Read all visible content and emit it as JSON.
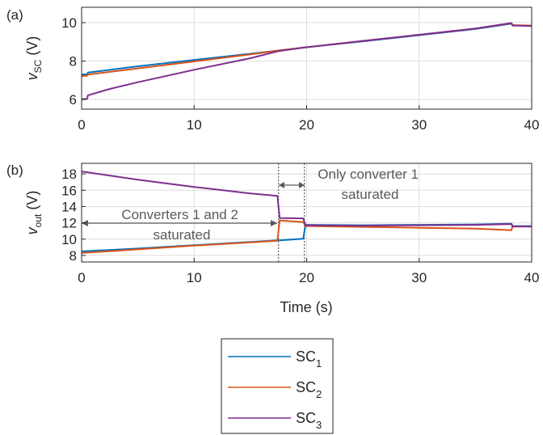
{
  "chart_data": [
    {
      "type": "line",
      "panel_label": "(a)",
      "ylabel": "v_SC (V)",
      "ylabel_main": "v",
      "ylabel_sub": "SC",
      "ylabel_unit": "(V)",
      "xlabel": "",
      "xlim": [
        0,
        40
      ],
      "ylim": [
        5.5,
        10.8
      ],
      "xticks": [
        "0",
        "10",
        "20",
        "30",
        "40"
      ],
      "yticks": [
        "6",
        "8",
        "10"
      ],
      "grid": true,
      "series": [
        {
          "name": "SC1",
          "color": "#0072BD",
          "x": [
            0,
            0.5,
            0.55,
            5,
            10,
            15,
            17.5,
            20,
            25,
            30,
            35,
            38.2,
            38.3,
            40
          ],
          "y": [
            7.3,
            7.32,
            7.4,
            7.73,
            8.06,
            8.38,
            8.55,
            8.72,
            9.03,
            9.35,
            9.67,
            9.95,
            9.86,
            9.84
          ]
        },
        {
          "name": "SC2",
          "color": "#D95319",
          "x": [
            0,
            0.5,
            0.55,
            5,
            10,
            15,
            17.5,
            20,
            25,
            30,
            35,
            38.2,
            38.3,
            40
          ],
          "y": [
            7.22,
            7.24,
            7.3,
            7.62,
            7.98,
            8.35,
            8.55,
            8.72,
            9.05,
            9.37,
            9.69,
            9.97,
            9.87,
            9.85
          ]
        },
        {
          "name": "SC3",
          "color": "#7E2F8E",
          "x": [
            0,
            0.5,
            0.55,
            2.5,
            5,
            10,
            15,
            17.5,
            20,
            25,
            30,
            35,
            38.2,
            38.3,
            40
          ],
          "y": [
            6.02,
            6.04,
            6.22,
            6.55,
            6.9,
            7.55,
            8.15,
            8.52,
            8.72,
            9.05,
            9.37,
            9.7,
            9.98,
            9.85,
            9.83
          ]
        }
      ]
    },
    {
      "type": "line",
      "panel_label": "(b)",
      "ylabel": "v_out (V)",
      "ylabel_main": "v",
      "ylabel_sub": "out",
      "ylabel_unit": "(V)",
      "xlabel": "Time (s)",
      "xlim": [
        0,
        40
      ],
      "ylim": [
        7.2,
        19.3
      ],
      "xticks": [
        "0",
        "10",
        "20",
        "30",
        "40"
      ],
      "yticks": [
        "8",
        "10",
        "12",
        "14",
        "16",
        "18"
      ],
      "grid": true,
      "vlines": [
        17.5,
        19.8
      ],
      "annotations": [
        {
          "lines": [
            "Converters 1 and 2",
            "saturated"
          ]
        },
        {
          "lines": [
            "Only converter 1",
            "saturated"
          ]
        }
      ],
      "series": [
        {
          "name": "SC1",
          "color": "#0072BD",
          "x": [
            0,
            5,
            10,
            15,
            17.4,
            17.6,
            19.7,
            19.9,
            25,
            30,
            35,
            38.2,
            38.3,
            40
          ],
          "y": [
            8.5,
            8.85,
            9.25,
            9.65,
            9.85,
            9.85,
            10.05,
            11.75,
            11.7,
            11.75,
            11.8,
            11.9,
            11.6,
            11.6
          ]
        },
        {
          "name": "SC2",
          "color": "#D95319",
          "x": [
            0,
            5,
            10,
            15,
            17.4,
            17.6,
            19.7,
            19.9,
            25,
            30,
            35,
            38.2,
            38.3,
            40
          ],
          "y": [
            8.3,
            8.75,
            9.2,
            9.6,
            9.8,
            12.3,
            12.1,
            11.6,
            11.5,
            11.4,
            11.3,
            11.1,
            11.55,
            11.55
          ]
        },
        {
          "name": "SC3",
          "color": "#7E2F8E",
          "x": [
            0,
            0.5,
            5,
            10,
            15,
            17.4,
            17.6,
            19.7,
            19.9,
            25,
            30,
            35,
            38.2,
            38.3,
            40
          ],
          "y": [
            18.3,
            18.2,
            17.3,
            16.4,
            15.6,
            15.3,
            12.6,
            12.55,
            11.7,
            11.65,
            11.7,
            11.75,
            11.85,
            11.55,
            11.55
          ]
        }
      ]
    }
  ],
  "legend": {
    "position": "bottom-center",
    "entries": [
      {
        "label": "SC",
        "sub": "1",
        "color": "#0072BD"
      },
      {
        "label": "SC",
        "sub": "2",
        "color": "#D95319"
      },
      {
        "label": "SC",
        "sub": "3",
        "color": "#7E2F8E"
      }
    ]
  }
}
